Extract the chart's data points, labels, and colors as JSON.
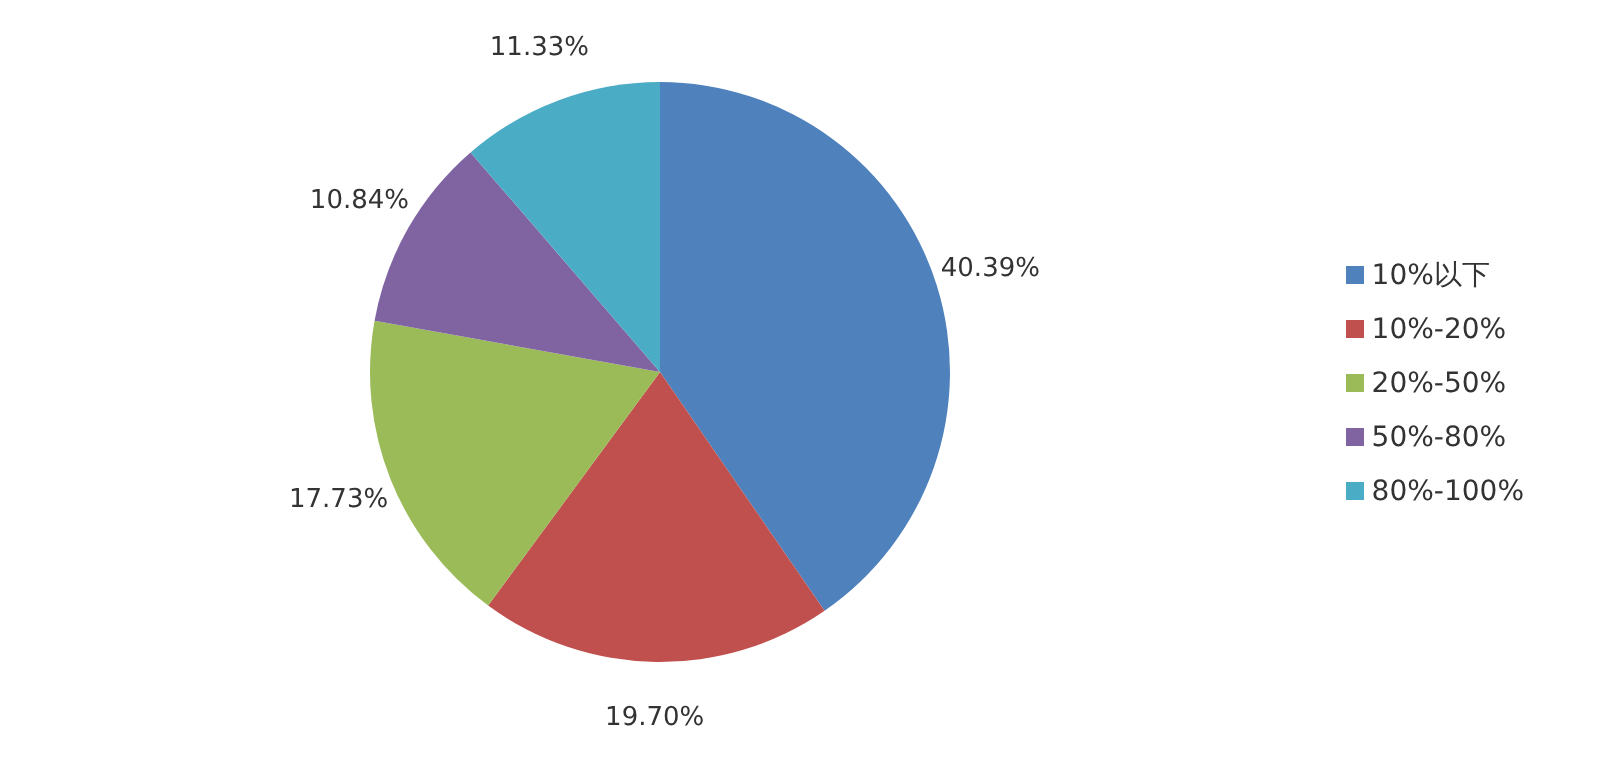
{
  "chart_data": {
    "type": "pie",
    "categories": [
      "10%以下",
      "10%-20%",
      "20%-50%",
      "50%-80%",
      "80%-100%"
    ],
    "values": [
      40.39,
      19.7,
      17.73,
      10.84,
      11.33
    ],
    "colors": [
      "#4f81bd",
      "#c0504d",
      "#9bbb59",
      "#8064a2",
      "#4bacc6"
    ],
    "value_labels": [
      "40.39%",
      "19.70%",
      "17.73%",
      "10.84%",
      "11.33%"
    ],
    "legend": "right"
  }
}
